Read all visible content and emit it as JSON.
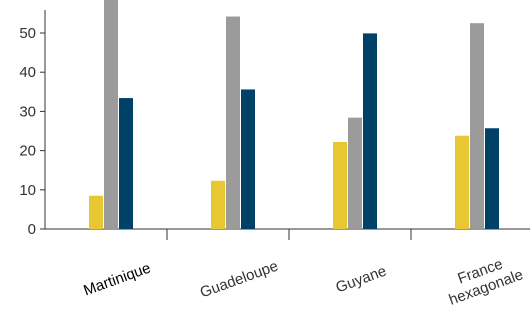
{
  "chart_data": {
    "type": "bar",
    "categories": [
      "Martinique",
      "Guadeloupe",
      "Guyane",
      "France hexagonale"
    ],
    "category_lines": [
      [
        "Martinique"
      ],
      [
        "Guadeloupe"
      ],
      [
        "Guyane"
      ],
      [
        "France",
        "hexagonale"
      ]
    ],
    "series": [
      {
        "color": "#e8c832",
        "values": [
          8.5,
          12.3,
          22.2,
          23.8
        ]
      },
      {
        "color": "#9b9b9b",
        "values": [
          59,
          54.2,
          28.4,
          52.5
        ]
      },
      {
        "color": "#004168",
        "values": [
          33.4,
          35.6,
          49.9,
          25.7
        ]
      }
    ],
    "yticks": [
      0,
      10,
      20,
      30,
      40,
      50
    ],
    "ylim": [
      0,
      60
    ],
    "title": "",
    "xlabel": "",
    "ylabel": "",
    "grid": false,
    "legend": "none",
    "axis_color": "#333333"
  }
}
